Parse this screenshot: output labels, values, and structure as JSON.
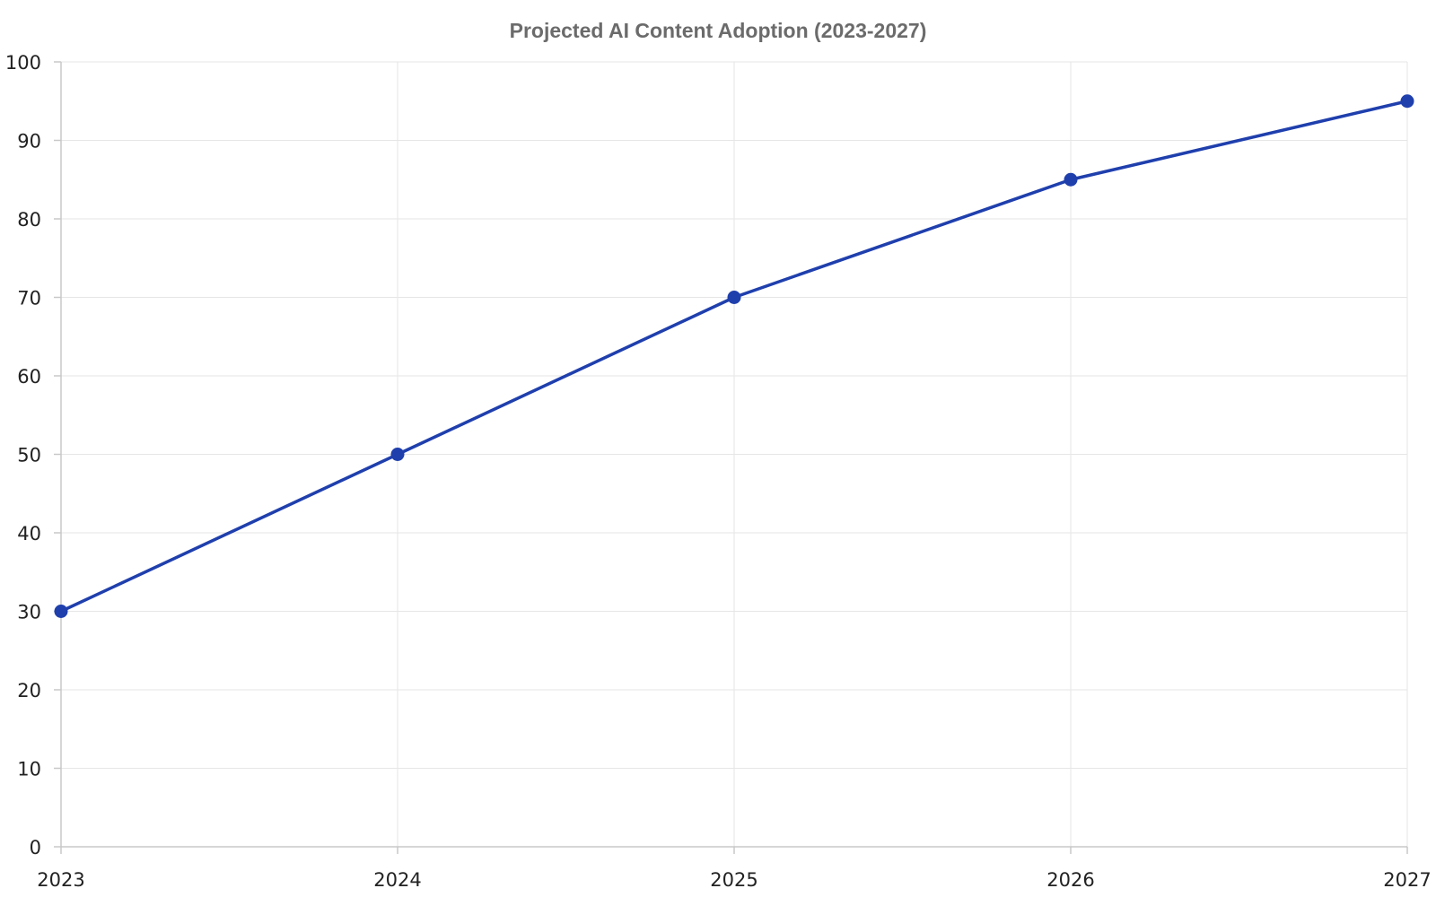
{
  "chart_data": {
    "type": "line",
    "title": "Projected AI Content Adoption (2023-2027)",
    "xlabel": "",
    "ylabel": "",
    "x": [
      "2023",
      "2024",
      "2025",
      "2026",
      "2027"
    ],
    "series": [
      {
        "values": [
          30,
          50,
          70,
          85,
          95
        ]
      }
    ],
    "ylim": [
      0,
      100
    ],
    "yticks": [
      0,
      10,
      20,
      30,
      40,
      50,
      60,
      70,
      80,
      90,
      100
    ],
    "grid": true,
    "legend": "none",
    "colors": {
      "line": "#1f3fad",
      "grid": "#e6e6e6",
      "axis": "#c8c8c8",
      "title": "#6b6b6b"
    }
  }
}
